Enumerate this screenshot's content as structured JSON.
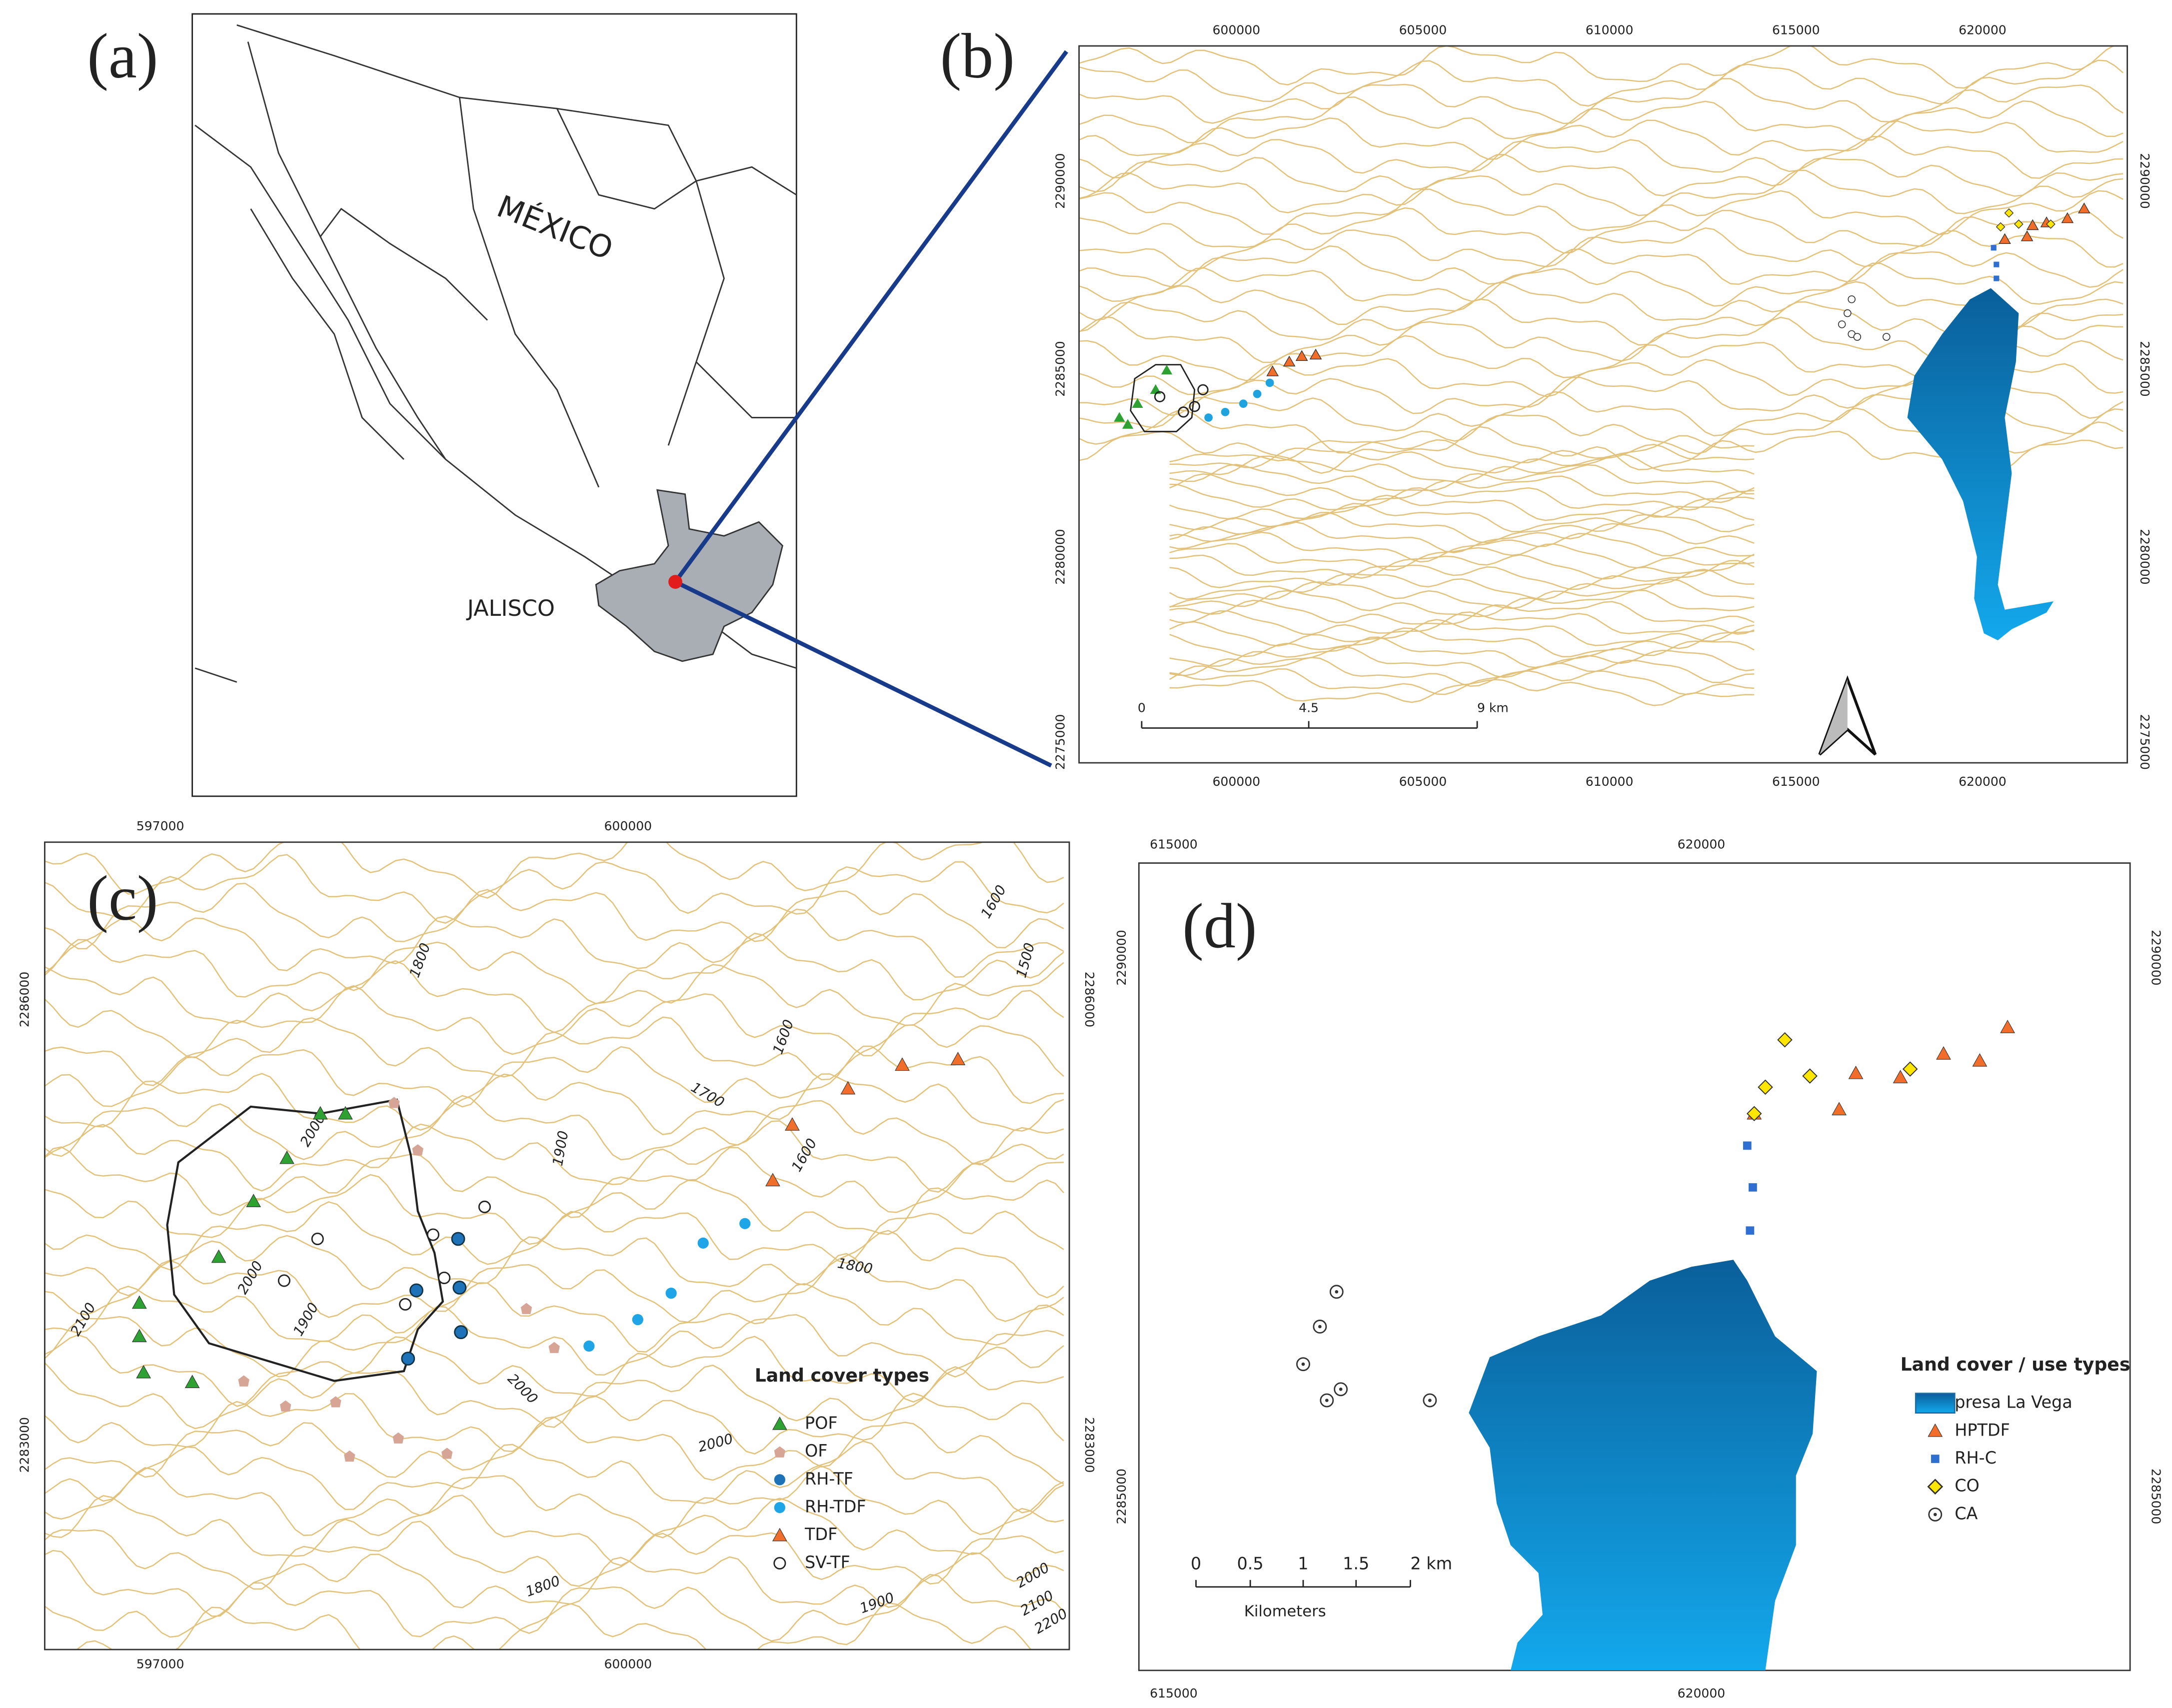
{
  "panel_a": {
    "label": "(a)",
    "country": "MÉXICO",
    "state": "JALISCO"
  },
  "panel_b": {
    "label": "(b)",
    "x_ticks": [
      "600000",
      "605000",
      "610000",
      "615000",
      "620000"
    ],
    "y_ticks": [
      "2290000",
      "2285000",
      "2280000",
      "2275000"
    ],
    "scale_bar": [
      "0",
      "4.5",
      "9 km"
    ]
  },
  "panel_c": {
    "label": "(c)",
    "x_ticks": [
      "597000",
      "600000"
    ],
    "y_ticks": [
      "2286000",
      "2283000"
    ],
    "contour_labels": [
      "1600",
      "1500",
      "1800",
      "1600",
      "1700",
      "1600",
      "1900",
      "2000",
      "2000",
      "1900",
      "2100",
      "1800",
      "2000",
      "2000",
      "1800",
      "1900",
      "2000",
      "2100",
      "2200"
    ],
    "legend_title": "Land cover types",
    "legend": [
      "POF",
      "OF",
      "RH-TF",
      "RH-TDF",
      "TDF",
      "SV-TF"
    ]
  },
  "panel_d": {
    "label": "(d)",
    "x_ticks": [
      "615000",
      "620000"
    ],
    "y_ticks": [
      "2290000",
      "2285000"
    ],
    "scale_bar": [
      "0",
      "0.5",
      "1",
      "1.5",
      "2 km"
    ],
    "scale_unit": "Kilometers",
    "legend_title": "Land cover / use types",
    "legend": [
      "presa La Vega",
      "HPTDF",
      "RH-C",
      "CO",
      "CA"
    ]
  }
}
